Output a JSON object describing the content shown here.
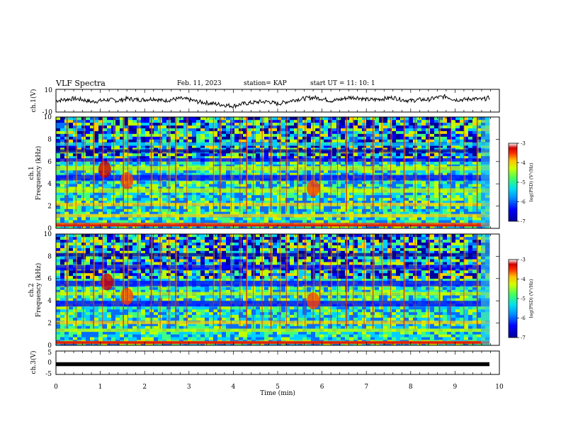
{
  "header": {
    "title": "VLF Spectra",
    "date": "Feb. 11, 2023",
    "station": "station= KAP",
    "start": "start  UT =   11: 10: 1"
  },
  "colors": {
    "trace": "#000000",
    "colormap": [
      "#00009a",
      "#0000ff",
      "#0070ff",
      "#00d0ff",
      "#40ff80",
      "#c0ff00",
      "#ffd000",
      "#ff4000",
      "#d00000",
      "#ffffff"
    ]
  },
  "chart_data": [
    {
      "type": "line",
      "ylabel": "ch.1(V)",
      "ylim": [
        -10,
        10
      ],
      "yticks": [
        "10",
        "-10"
      ],
      "xlim": [
        0,
        10
      ],
      "x": [
        0.0,
        0.2,
        0.4,
        0.6,
        0.8,
        1.0,
        1.2,
        1.4,
        1.6,
        1.8,
        2.0,
        2.2,
        2.4,
        2.6,
        2.8,
        3.0,
        3.2,
        3.4,
        3.6,
        3.8,
        4.0,
        4.2,
        4.4,
        4.6,
        4.8,
        5.0,
        5.2,
        5.4,
        5.6,
        5.8,
        6.0,
        6.2,
        6.4,
        6.6,
        6.8,
        7.0,
        7.2,
        7.4,
        7.6,
        7.8,
        8.0,
        8.2,
        8.4,
        8.6,
        8.8,
        9.0,
        9.2,
        9.4,
        9.6,
        9.8
      ],
      "y": [
        0,
        1,
        2,
        1,
        -1,
        0,
        1,
        0,
        2,
        1,
        1,
        2,
        0,
        1,
        2,
        1,
        -1,
        -2,
        -3,
        -4,
        -5,
        -3,
        -2,
        -1,
        -1,
        -3,
        -1,
        1,
        2,
        3,
        2,
        0,
        1,
        3,
        3,
        1,
        1,
        2,
        3,
        1,
        0,
        1,
        1,
        3,
        4,
        1,
        1,
        2,
        1,
        3
      ]
    },
    {
      "type": "heatmap",
      "title": "ch.1",
      "ylabel": "Frequency (kHz)",
      "xlim": [
        0,
        10
      ],
      "ylim": [
        0,
        10
      ],
      "yticks": [
        "0",
        "2",
        "4",
        "6",
        "8",
        "10"
      ],
      "colorbar": {
        "label": "log(PSD) (V²/Hz)",
        "range": [
          -7,
          -3
        ],
        "ticks": [
          "-3",
          "-4",
          "-5",
          "-6",
          "-7"
        ]
      },
      "sferic_times_min": [
        0.25,
        0.45,
        0.62,
        0.85,
        1.05,
        1.3,
        1.52,
        1.62,
        1.85,
        2.15,
        2.35,
        2.55,
        2.7,
        2.95,
        3.55,
        3.7,
        3.95,
        4.15,
        4.3,
        4.45,
        4.65,
        4.85,
        5.05,
        5.2,
        5.45,
        5.62,
        5.8,
        5.95,
        6.2,
        6.35,
        6.55,
        6.7,
        6.95,
        7.15,
        7.35,
        7.55,
        7.85,
        8.1,
        8.4,
        8.65,
        8.9,
        9.2,
        9.5
      ],
      "bands_khz": [
        {
          "from": 0.2,
          "to": 0.5,
          "level": -3.5
        },
        {
          "from": 1.0,
          "to": 1.3,
          "level": -4.3
        },
        {
          "from": 2.0,
          "to": 2.3,
          "level": -4.0
        },
        {
          "from": 3.2,
          "to": 3.6,
          "level": -4.4
        },
        {
          "from": 4.3,
          "to": 4.8,
          "level": -6.3
        },
        {
          "from": 5.2,
          "to": 5.6,
          "level": -4.5
        },
        {
          "from": 6.0,
          "to": 6.3,
          "level": -6.5
        },
        {
          "from": 6.8,
          "to": 7.1,
          "level": -6.6
        },
        {
          "from": 7.4,
          "to": 7.7,
          "level": -5.5
        }
      ],
      "emission_blobs": [
        {
          "time": 1.1,
          "freq_khz": 5.3,
          "level": -3.2
        },
        {
          "time": 1.6,
          "freq_khz": 4.3,
          "level": -3.8
        },
        {
          "time": 5.8,
          "freq_khz": 3.6,
          "level": -3.5
        }
      ]
    },
    {
      "type": "heatmap",
      "title": "ch.2",
      "ylabel": "Frequency (kHz)",
      "xlim": [
        0,
        10
      ],
      "ylim": [
        0,
        10
      ],
      "yticks": [
        "0",
        "2",
        "4",
        "6",
        "8",
        "10"
      ],
      "colorbar": {
        "label": "log(PSD) (V²/Hz)",
        "range": [
          -7,
          -3
        ],
        "ticks": [
          "-3",
          "-4",
          "-5",
          "-6",
          "-7"
        ]
      },
      "sferic_times_min": [
        0.25,
        0.45,
        0.62,
        0.85,
        1.05,
        1.3,
        1.52,
        1.62,
        1.85,
        2.15,
        2.35,
        2.55,
        2.7,
        2.95,
        3.55,
        3.7,
        3.95,
        4.15,
        4.3,
        4.45,
        4.65,
        4.85,
        5.05,
        5.2,
        5.45,
        5.62,
        5.8,
        5.95,
        6.2,
        6.35,
        6.55,
        6.7,
        6.95,
        7.15,
        7.35,
        7.55,
        7.85,
        8.1,
        8.4,
        8.65,
        8.9,
        9.2,
        9.5
      ],
      "bands_khz": [
        {
          "from": 0.1,
          "to": 0.4,
          "level": -3.6
        },
        {
          "from": 1.2,
          "to": 1.5,
          "level": -4.5
        },
        {
          "from": 1.9,
          "to": 2.2,
          "level": -4.2
        },
        {
          "from": 3.5,
          "to": 4.0,
          "level": -6.2
        },
        {
          "from": 4.5,
          "to": 4.8,
          "level": -4.6
        },
        {
          "from": 5.3,
          "to": 5.8,
          "level": -6.3
        },
        {
          "from": 6.8,
          "to": 7.2,
          "level": -6.5
        },
        {
          "from": 8.0,
          "to": 8.3,
          "level": -6.6
        }
      ],
      "emission_blobs": [
        {
          "time": 1.15,
          "freq_khz": 5.7,
          "level": -3.2
        },
        {
          "time": 1.6,
          "freq_khz": 4.4,
          "level": -3.8
        },
        {
          "time": 5.8,
          "freq_khz": 4.0,
          "level": -3.5
        }
      ]
    },
    {
      "type": "line",
      "ylabel": "ch.3(V)",
      "ylim": [
        -5,
        5
      ],
      "yticks": [
        "5",
        "0",
        "-5"
      ],
      "xlim": [
        0,
        10
      ],
      "xlabel": "Time (min)",
      "xticks": [
        "0",
        "1",
        "2",
        "3",
        "4",
        "5",
        "6",
        "7",
        "8",
        "9",
        "10"
      ],
      "value_range": [
        -0.25,
        0.25
      ]
    }
  ]
}
